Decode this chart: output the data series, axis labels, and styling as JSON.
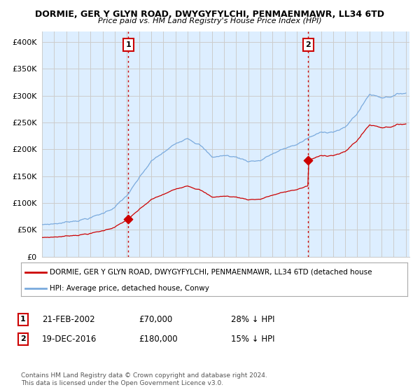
{
  "title": "DORMIE, GER Y GLYN ROAD, DWYGYFYLCHI, PENMAENMAWR, LL34 6TD",
  "subtitle": "Price paid vs. HM Land Registry's House Price Index (HPI)",
  "ylim": [
    0,
    420000
  ],
  "yticks": [
    0,
    50000,
    100000,
    150000,
    200000,
    250000,
    300000,
    350000,
    400000
  ],
  "line1_color": "#cc0000",
  "line2_color": "#7aaadd",
  "bg_fill_color": "#ddeeff",
  "legend_line1": "DORMIE, GER Y GLYN ROAD, DWYGYFYLCHI, PENMAENMAWR, LL34 6TD (detached house",
  "legend_line2": "HPI: Average price, detached house, Conwy",
  "annotation1_date": "21-FEB-2002",
  "annotation1_price": "£70,000",
  "annotation1_hpi": "28% ↓ HPI",
  "annotation2_date": "19-DEC-2016",
  "annotation2_price": "£180,000",
  "annotation2_hpi": "15% ↓ HPI",
  "footer": "Contains HM Land Registry data © Crown copyright and database right 2024.\nThis data is licensed under the Open Government Licence v3.0.",
  "background_color": "#ffffff",
  "grid_color": "#cccccc",
  "vline_color": "#cc0000",
  "hpi_controls": {
    "1995.0": 60000,
    "1996.0": 62000,
    "1997.0": 65000,
    "1998.0": 70000,
    "1999.0": 75000,
    "2000.0": 82000,
    "2001.0": 95000,
    "2002.0": 115000,
    "2003.0": 145000,
    "2004.0": 175000,
    "2005.0": 190000,
    "2006.0": 205000,
    "2007.0": 220000,
    "2008.0": 210000,
    "2009.0": 185000,
    "2010.0": 188000,
    "2011.0": 185000,
    "2012.0": 178000,
    "2013.0": 180000,
    "2014.0": 192000,
    "2015.0": 200000,
    "2016.0": 208000,
    "2017.0": 220000,
    "2018.0": 228000,
    "2019.0": 232000,
    "2020.0": 238000,
    "2021.0": 265000,
    "2022.0": 300000,
    "2023.0": 295000,
    "2024.0": 300000,
    "2025.0": 305000
  },
  "sale1_year": 2002.12,
  "sale2_year": 2016.96,
  "sale1_price": 70000,
  "sale2_price": 180000
}
